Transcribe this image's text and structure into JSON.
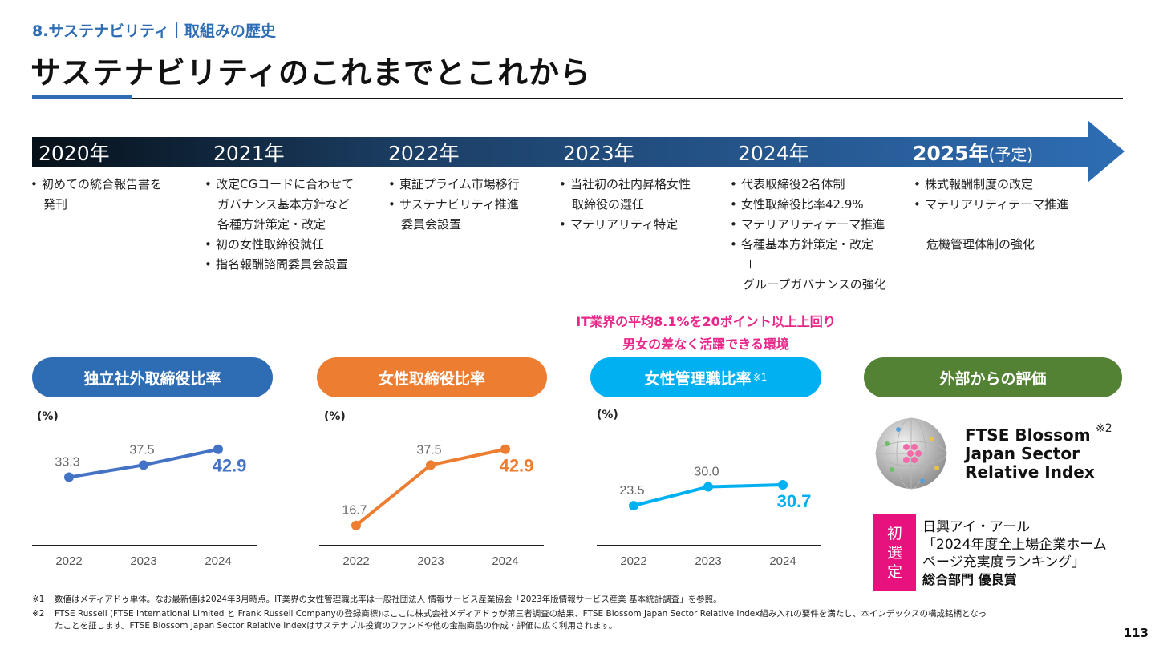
{
  "header": {
    "breadcrumb": "8.サステナビリティ｜取組みの歴史",
    "title": "サステナビリティのこれまでとこれから"
  },
  "timeline": {
    "years": [
      {
        "label": "2020年",
        "note": "",
        "events": [
          {
            "text": "初めての統合報告書を",
            "bullet": true
          },
          {
            "text": "発刊",
            "bullet": false
          }
        ]
      },
      {
        "label": "2021年",
        "note": "",
        "events": [
          {
            "text": "改定CGコードに合わせて",
            "bullet": true
          },
          {
            "text": "ガバナンス基本方針など",
            "bullet": false
          },
          {
            "text": "各種方針策定・改定",
            "bullet": false
          },
          {
            "text": "初の女性取締役就任",
            "bullet": true
          },
          {
            "text": "指名報酬諮問委員会設置",
            "bullet": true
          }
        ]
      },
      {
        "label": "2022年",
        "note": "",
        "events": [
          {
            "text": "東証プライム市場移行",
            "bullet": true
          },
          {
            "text": "サステナビリティ推進",
            "bullet": true
          },
          {
            "text": "委員会設置",
            "bullet": false
          }
        ]
      },
      {
        "label": "2023年",
        "note": "",
        "events": [
          {
            "text": "当社初の社内昇格女性",
            "bullet": true
          },
          {
            "text": "取締役の選任",
            "bullet": false
          },
          {
            "text": "マテリアリティ特定",
            "bullet": true
          }
        ]
      },
      {
        "label": "2024年",
        "note": "",
        "events": [
          {
            "text": "代表取締役2名体制",
            "bullet": true
          },
          {
            "text": "女性取締役比率42.9%",
            "bullet": true
          },
          {
            "text": "マテリアリティテーマ推進",
            "bullet": true
          },
          {
            "text": "各種基本方針策定・改定",
            "bullet": true
          },
          {
            "text": "＋",
            "bullet": false
          },
          {
            "text": "グループガバナンスの強化",
            "bullet": false
          }
        ]
      },
      {
        "label": "2025年",
        "note": "(予定)",
        "events": [
          {
            "text": "株式報酬制度の改定",
            "bullet": true
          },
          {
            "text": "マテリアリティテーマ推進",
            "bullet": true
          },
          {
            "text": "＋",
            "bullet": false
          },
          {
            "text": "危機管理体制の強化",
            "bullet": false
          }
        ]
      }
    ]
  },
  "callout": {
    "line1": "IT業界の平均8.1%を20ポイント以上上回り",
    "line2": "男女の差なく活躍できる環境"
  },
  "pills": [
    {
      "label": "独立社外取締役比率",
      "sup": "",
      "color": "#2e6db4"
    },
    {
      "label": "女性取締役比率",
      "sup": "",
      "color": "#ed7d31"
    },
    {
      "label": "女性管理職比率",
      "sup": "※1",
      "color": "#00b0f0"
    },
    {
      "label": "外部からの評価",
      "sup": "",
      "color": "#548235"
    }
  ],
  "chart_data": [
    {
      "type": "line",
      "title": "独立社外取締役比率",
      "unit": "(%)",
      "categories": [
        "2022",
        "2023",
        "2024"
      ],
      "values": [
        33.3,
        37.5,
        42.9
      ],
      "labels": [
        "33.3",
        "37.5",
        "42.9"
      ],
      "ylim": [
        10,
        50
      ],
      "color": "#4472c4"
    },
    {
      "type": "line",
      "title": "女性取締役比率",
      "unit": "(%)",
      "categories": [
        "2022",
        "2023",
        "2024"
      ],
      "values": [
        16.7,
        37.5,
        42.9
      ],
      "labels": [
        "16.7",
        "37.5",
        "42.9"
      ],
      "ylim": [
        10,
        50
      ],
      "color": "#ed7d31"
    },
    {
      "type": "line",
      "title": "女性管理職比率",
      "unit": "(%)",
      "categories": [
        "2022",
        "2023",
        "2024"
      ],
      "values": [
        23.5,
        30.0,
        30.7
      ],
      "labels": [
        "23.5",
        "30.0",
        "30.7"
      ],
      "ylim": [
        10,
        50
      ],
      "color": "#00b0f0"
    }
  ],
  "evaluation": {
    "ftse_line1": "FTSE Blossom",
    "ftse_line2": "Japan Sector",
    "ftse_line3": "Relative Index",
    "ftse_note": "※2",
    "badge": [
      "初",
      "選",
      "定"
    ],
    "award_line1": "日興アイ・アール",
    "award_line2": "「2024年度全上場企業ホーム",
    "award_line3": "ページ充実度ランキング」",
    "award_line4": "総合部門 優良賞"
  },
  "footnotes": [
    {
      "mark": "※1",
      "lines": [
        "数値はメディアドゥ単体。なお最新値は2024年3月時点。IT業界の女性管理職比率は一般社団法人 情報サービス産業協会「2023年版情報サービス産業 基本統計調査」を参照。"
      ]
    },
    {
      "mark": "※2",
      "lines": [
        "FTSE Russell (FTSE International Limited と Frank Russell Companyの登録商標)はここに株式会社メディアドゥが第三者調査の結果、FTSE Blossom Japan Sector Relative Index組み入れの要件を満たし、本インデックスの構成銘柄となっ",
        "たことを証します。FTSE Blossom Japan Sector Relative Indexはサステナブル投資のファンドや他の金融商品の作成・評価に広く利用されます。"
      ]
    }
  ],
  "page_number": "113",
  "colors": {
    "accent": "#2e6db4",
    "highlight": "#e8278a",
    "badge": "#e8127f"
  }
}
